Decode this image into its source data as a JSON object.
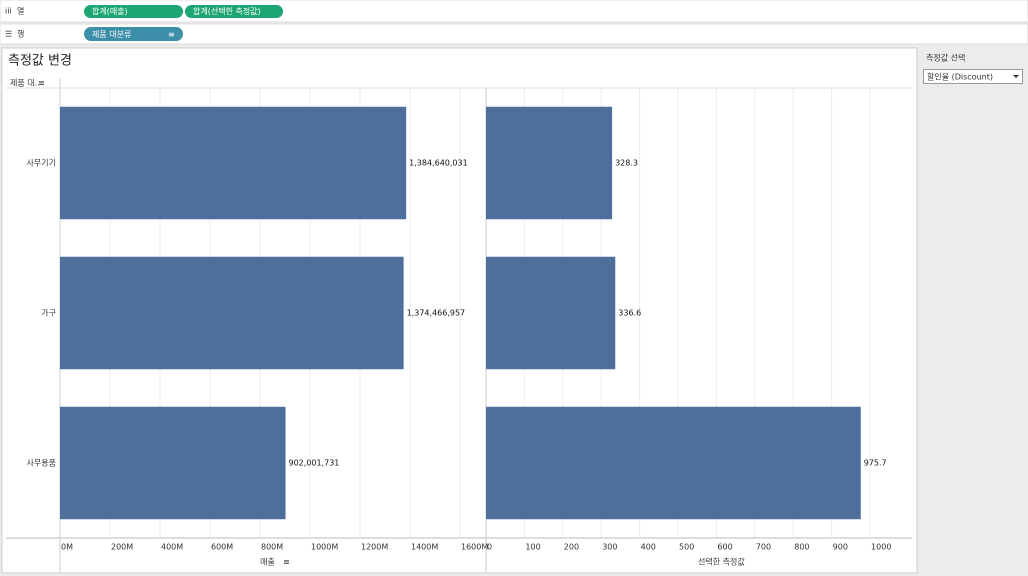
{
  "shelves": {
    "columns_label": "열",
    "columns_pills": [
      "합계(매출)",
      "합계(선택한 측정값)"
    ],
    "rows_label": "행",
    "rows_pills": [
      "제품 대분류"
    ]
  },
  "sheet": {
    "title": "측정값 변경",
    "row_header": "제품 대.."
  },
  "parameter": {
    "title": "측정값 선택",
    "selected": "할인율 (Discount)"
  },
  "chart_data": [
    {
      "type": "bar",
      "categories": [
        "사무기기",
        "가구",
        "사무용품"
      ],
      "values": [
        1384640031,
        1374466957,
        902001731
      ],
      "value_labels": [
        "1,384,640,031",
        "1,374,466,957",
        "902,001,731"
      ],
      "color": "#4e6f9b",
      "xlabel": "매출",
      "grid": true,
      "xlim": [
        0,
        1660000000
      ],
      "xticks": [
        {
          "value": 0,
          "label": "0M"
        },
        {
          "value": 200000000,
          "label": "200M"
        },
        {
          "value": 400000000,
          "label": "400M"
        },
        {
          "value": 600000000,
          "label": "600M"
        },
        {
          "value": 800000000,
          "label": "800M"
        },
        {
          "value": 1000000000,
          "label": "1000M"
        },
        {
          "value": 1200000000,
          "label": "1200M"
        },
        {
          "value": 1400000000,
          "label": "1400M"
        },
        {
          "value": 1600000000,
          "label": "1600M"
        }
      ]
    },
    {
      "type": "bar",
      "values": [
        328.3,
        336.6,
        975.7
      ],
      "color": "#4e6f9b",
      "xlabel": "선택한 측정값",
      "grid": true,
      "xlim": [
        0,
        1104
      ],
      "xticks": [
        0,
        100,
        200,
        300,
        400,
        500,
        600,
        700,
        800,
        900,
        1000
      ]
    }
  ]
}
